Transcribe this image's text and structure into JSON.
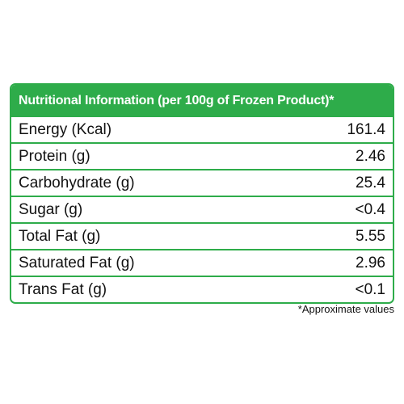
{
  "table": {
    "title": "Nutritional Information (per 100g of Frozen Product)*",
    "rows": [
      [
        "Energy (Kcal)",
        "161.4"
      ],
      [
        "Protein (g)",
        "2.46"
      ],
      [
        "Carbohydrate (g)",
        "25.4"
      ],
      [
        "Sugar (g)",
        "<0.4"
      ],
      [
        "Total Fat (g)",
        "5.55"
      ],
      [
        "Saturated Fat (g)",
        "2.96"
      ],
      [
        "Trans Fat (g)",
        "<0.1"
      ]
    ],
    "footnote": "*Approximate values"
  }
}
